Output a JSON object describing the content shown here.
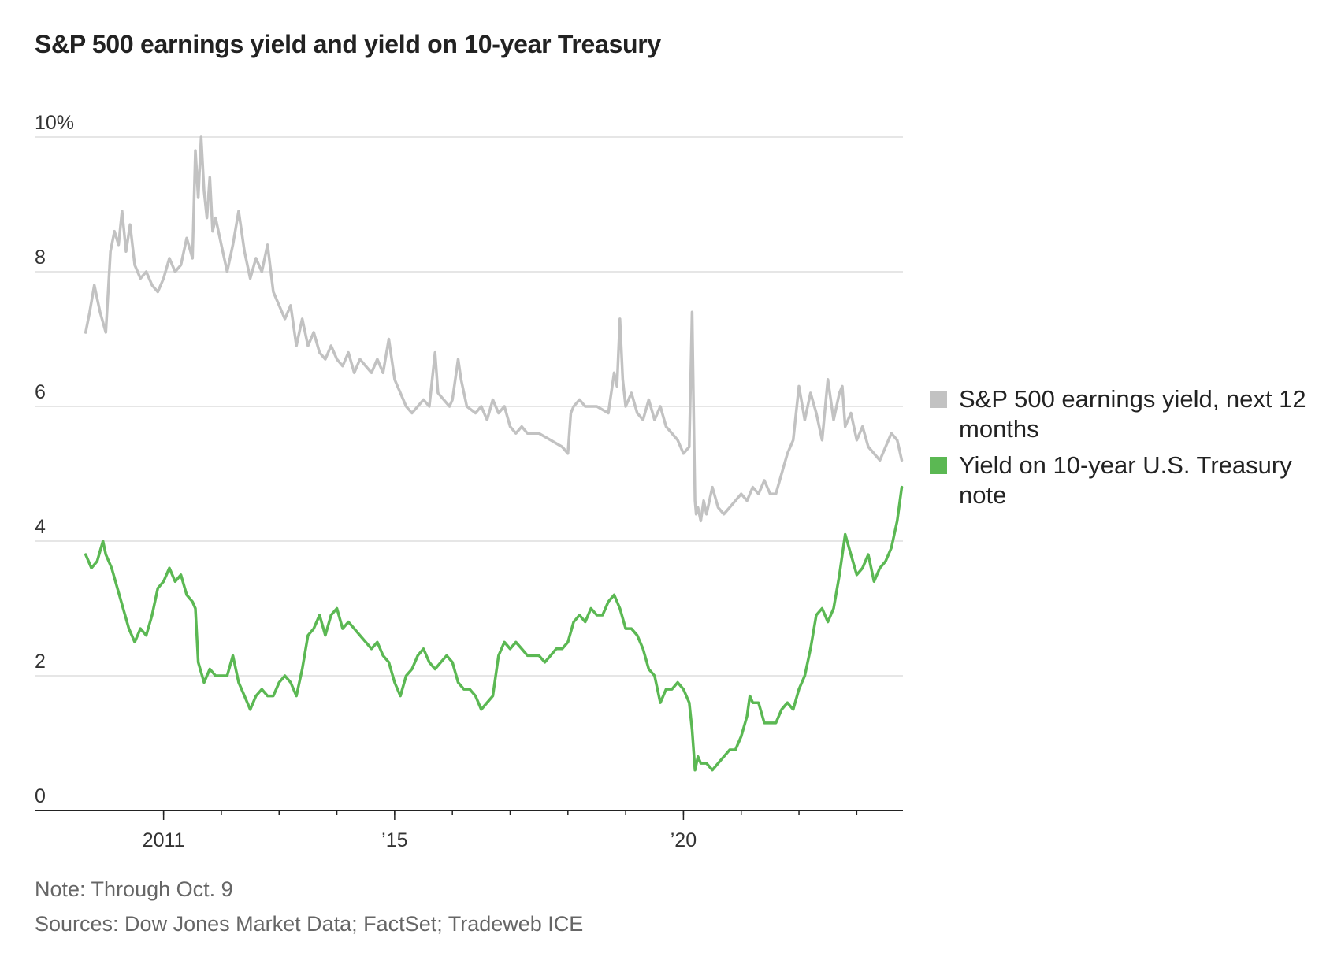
{
  "chart_data": {
    "type": "line",
    "title": "S&P 500 earnings yield and yield on 10-year Treasury",
    "xlabel": "",
    "ylabel": "",
    "ylim": [
      0,
      10
    ],
    "xlim": [
      2009.6,
      2023.8
    ],
    "yticks": [
      {
        "value": 0,
        "label": "0"
      },
      {
        "value": 2,
        "label": "2"
      },
      {
        "value": 4,
        "label": "4"
      },
      {
        "value": 6,
        "label": "6"
      },
      {
        "value": 8,
        "label": "8"
      },
      {
        "value": 10,
        "label": "10%"
      }
    ],
    "xticks": [
      {
        "value": 2011,
        "label": "2011"
      },
      {
        "value": 2015,
        "label": "’15"
      },
      {
        "value": 2020,
        "label": "’20"
      }
    ],
    "xminor": [
      2011,
      2012,
      2013,
      2014,
      2015,
      2016,
      2017,
      2018,
      2019,
      2020,
      2021,
      2022,
      2023
    ],
    "grid": true,
    "legend": "right",
    "series": [
      {
        "name": "S&P 500 earnings yield, next 12 months",
        "color": "#c2c2c2",
        "x": [
          2009.65,
          2009.72,
          2009.8,
          2009.9,
          2010.0,
          2010.08,
          2010.15,
          2010.22,
          2010.28,
          2010.35,
          2010.42,
          2010.5,
          2010.6,
          2010.7,
          2010.8,
          2010.9,
          2011.0,
          2011.1,
          2011.2,
          2011.3,
          2011.4,
          2011.5,
          2011.55,
          2011.6,
          2011.65,
          2011.7,
          2011.75,
          2011.8,
          2011.85,
          2011.9,
          2012.0,
          2012.1,
          2012.2,
          2012.3,
          2012.4,
          2012.5,
          2012.6,
          2012.7,
          2012.8,
          2012.9,
          2013.0,
          2013.1,
          2013.2,
          2013.3,
          2013.4,
          2013.5,
          2013.6,
          2013.7,
          2013.8,
          2013.9,
          2014.0,
          2014.1,
          2014.2,
          2014.3,
          2014.4,
          2014.5,
          2014.6,
          2014.7,
          2014.8,
          2014.9,
          2015.0,
          2015.1,
          2015.2,
          2015.3,
          2015.4,
          2015.5,
          2015.6,
          2015.7,
          2015.75,
          2015.85,
          2015.95,
          2016.0,
          2016.1,
          2016.15,
          2016.25,
          2016.4,
          2016.5,
          2016.6,
          2016.7,
          2016.8,
          2016.9,
          2017.0,
          2017.1,
          2017.2,
          2017.3,
          2017.5,
          2017.7,
          2017.9,
          2018.0,
          2018.05,
          2018.1,
          2018.2,
          2018.3,
          2018.5,
          2018.7,
          2018.8,
          2018.85,
          2018.9,
          2018.95,
          2019.0,
          2019.1,
          2019.2,
          2019.3,
          2019.4,
          2019.5,
          2019.6,
          2019.7,
          2019.8,
          2019.9,
          2020.0,
          2020.1,
          2020.15,
          2020.2,
          2020.22,
          2020.25,
          2020.3,
          2020.35,
          2020.4,
          2020.5,
          2020.6,
          2020.7,
          2020.8,
          2020.9,
          2021.0,
          2021.1,
          2021.2,
          2021.3,
          2021.4,
          2021.5,
          2021.6,
          2021.7,
          2021.8,
          2021.9,
          2022.0,
          2022.1,
          2022.2,
          2022.3,
          2022.4,
          2022.5,
          2022.6,
          2022.7,
          2022.75,
          2022.8,
          2022.9,
          2023.0,
          2023.1,
          2023.2,
          2023.3,
          2023.4,
          2023.5,
          2023.6,
          2023.7,
          2023.78
        ],
        "values": [
          7.1,
          7.4,
          7.8,
          7.4,
          7.1,
          8.3,
          8.6,
          8.4,
          8.9,
          8.3,
          8.7,
          8.1,
          7.9,
          8.0,
          7.8,
          7.7,
          7.9,
          8.2,
          8.0,
          8.1,
          8.5,
          8.2,
          9.8,
          9.1,
          10.0,
          9.2,
          8.8,
          9.4,
          8.6,
          8.8,
          8.4,
          8.0,
          8.4,
          8.9,
          8.3,
          7.9,
          8.2,
          8.0,
          8.4,
          7.7,
          7.5,
          7.3,
          7.5,
          6.9,
          7.3,
          6.9,
          7.1,
          6.8,
          6.7,
          6.9,
          6.7,
          6.6,
          6.8,
          6.5,
          6.7,
          6.6,
          6.5,
          6.7,
          6.5,
          7.0,
          6.4,
          6.2,
          6.0,
          5.9,
          6.0,
          6.1,
          6.0,
          6.8,
          6.2,
          6.1,
          6.0,
          6.1,
          6.7,
          6.4,
          6.0,
          5.9,
          6.0,
          5.8,
          6.1,
          5.9,
          6.0,
          5.7,
          5.6,
          5.7,
          5.6,
          5.6,
          5.5,
          5.4,
          5.3,
          5.9,
          6.0,
          6.1,
          6.0,
          6.0,
          5.9,
          6.5,
          6.3,
          7.3,
          6.4,
          6.0,
          6.2,
          5.9,
          5.8,
          6.1,
          5.8,
          6.0,
          5.7,
          5.6,
          5.5,
          5.3,
          5.4,
          7.4,
          4.6,
          4.4,
          4.5,
          4.3,
          4.6,
          4.4,
          4.8,
          4.5,
          4.4,
          4.5,
          4.6,
          4.7,
          4.6,
          4.8,
          4.7,
          4.9,
          4.7,
          4.7,
          5.0,
          5.3,
          5.5,
          6.3,
          5.8,
          6.2,
          5.9,
          5.5,
          6.4,
          5.8,
          6.2,
          6.3,
          5.7,
          5.9,
          5.5,
          5.7,
          5.4,
          5.3,
          5.2,
          5.4,
          5.6,
          5.5,
          5.2
        ]
      },
      {
        "name": "Yield on 10-year U.S. Treasury note",
        "color": "#5bb853",
        "x": [
          2009.65,
          2009.75,
          2009.85,
          2009.95,
          2010.0,
          2010.1,
          2010.2,
          2010.3,
          2010.4,
          2010.5,
          2010.6,
          2010.7,
          2010.8,
          2010.9,
          2011.0,
          2011.1,
          2011.2,
          2011.3,
          2011.4,
          2011.5,
          2011.55,
          2011.6,
          2011.7,
          2011.8,
          2011.9,
          2012.0,
          2012.1,
          2012.2,
          2012.3,
          2012.4,
          2012.5,
          2012.6,
          2012.7,
          2012.8,
          2012.9,
          2013.0,
          2013.1,
          2013.2,
          2013.3,
          2013.4,
          2013.5,
          2013.6,
          2013.7,
          2013.8,
          2013.9,
          2014.0,
          2014.1,
          2014.2,
          2014.3,
          2014.4,
          2014.5,
          2014.6,
          2014.7,
          2014.8,
          2014.9,
          2015.0,
          2015.1,
          2015.2,
          2015.3,
          2015.4,
          2015.5,
          2015.6,
          2015.7,
          2015.8,
          2015.9,
          2016.0,
          2016.1,
          2016.2,
          2016.3,
          2016.4,
          2016.5,
          2016.6,
          2016.7,
          2016.8,
          2016.9,
          2017.0,
          2017.1,
          2017.2,
          2017.3,
          2017.4,
          2017.5,
          2017.6,
          2017.7,
          2017.8,
          2017.9,
          2018.0,
          2018.1,
          2018.2,
          2018.3,
          2018.4,
          2018.5,
          2018.6,
          2018.7,
          2018.8,
          2018.9,
          2019.0,
          2019.1,
          2019.2,
          2019.3,
          2019.4,
          2019.5,
          2019.6,
          2019.7,
          2019.8,
          2019.9,
          2020.0,
          2020.1,
          2020.15,
          2020.2,
          2020.25,
          2020.3,
          2020.4,
          2020.5,
          2020.6,
          2020.7,
          2020.8,
          2020.9,
          2021.0,
          2021.1,
          2021.15,
          2021.2,
          2021.3,
          2021.4,
          2021.5,
          2021.6,
          2021.7,
          2021.8,
          2021.9,
          2022.0,
          2022.1,
          2022.2,
          2022.3,
          2022.4,
          2022.5,
          2022.6,
          2022.7,
          2022.8,
          2022.9,
          2023.0,
          2023.1,
          2023.2,
          2023.3,
          2023.4,
          2023.5,
          2023.6,
          2023.7,
          2023.78
        ],
        "values": [
          3.8,
          3.6,
          3.7,
          4.0,
          3.8,
          3.6,
          3.3,
          3.0,
          2.7,
          2.5,
          2.7,
          2.6,
          2.9,
          3.3,
          3.4,
          3.6,
          3.4,
          3.5,
          3.2,
          3.1,
          3.0,
          2.2,
          1.9,
          2.1,
          2.0,
          2.0,
          2.0,
          2.3,
          1.9,
          1.7,
          1.5,
          1.7,
          1.8,
          1.7,
          1.7,
          1.9,
          2.0,
          1.9,
          1.7,
          2.1,
          2.6,
          2.7,
          2.9,
          2.6,
          2.9,
          3.0,
          2.7,
          2.8,
          2.7,
          2.6,
          2.5,
          2.4,
          2.5,
          2.3,
          2.2,
          1.9,
          1.7,
          2.0,
          2.1,
          2.3,
          2.4,
          2.2,
          2.1,
          2.2,
          2.3,
          2.2,
          1.9,
          1.8,
          1.8,
          1.7,
          1.5,
          1.6,
          1.7,
          2.3,
          2.5,
          2.4,
          2.5,
          2.4,
          2.3,
          2.3,
          2.3,
          2.2,
          2.3,
          2.4,
          2.4,
          2.5,
          2.8,
          2.9,
          2.8,
          3.0,
          2.9,
          2.9,
          3.1,
          3.2,
          3.0,
          2.7,
          2.7,
          2.6,
          2.4,
          2.1,
          2.0,
          1.6,
          1.8,
          1.8,
          1.9,
          1.8,
          1.6,
          1.2,
          0.6,
          0.8,
          0.7,
          0.7,
          0.6,
          0.7,
          0.8,
          0.9,
          0.9,
          1.1,
          1.4,
          1.7,
          1.6,
          1.6,
          1.3,
          1.3,
          1.3,
          1.5,
          1.6,
          1.5,
          1.8,
          2.0,
          2.4,
          2.9,
          3.0,
          2.8,
          3.0,
          3.5,
          4.1,
          3.8,
          3.5,
          3.6,
          3.8,
          3.4,
          3.6,
          3.7,
          3.9,
          4.3,
          4.8
        ]
      }
    ]
  },
  "notes": {
    "note": "Note: Through Oct. 9",
    "sources": "Sources: Dow Jones Market Data; FactSet; Tradeweb ICE"
  }
}
